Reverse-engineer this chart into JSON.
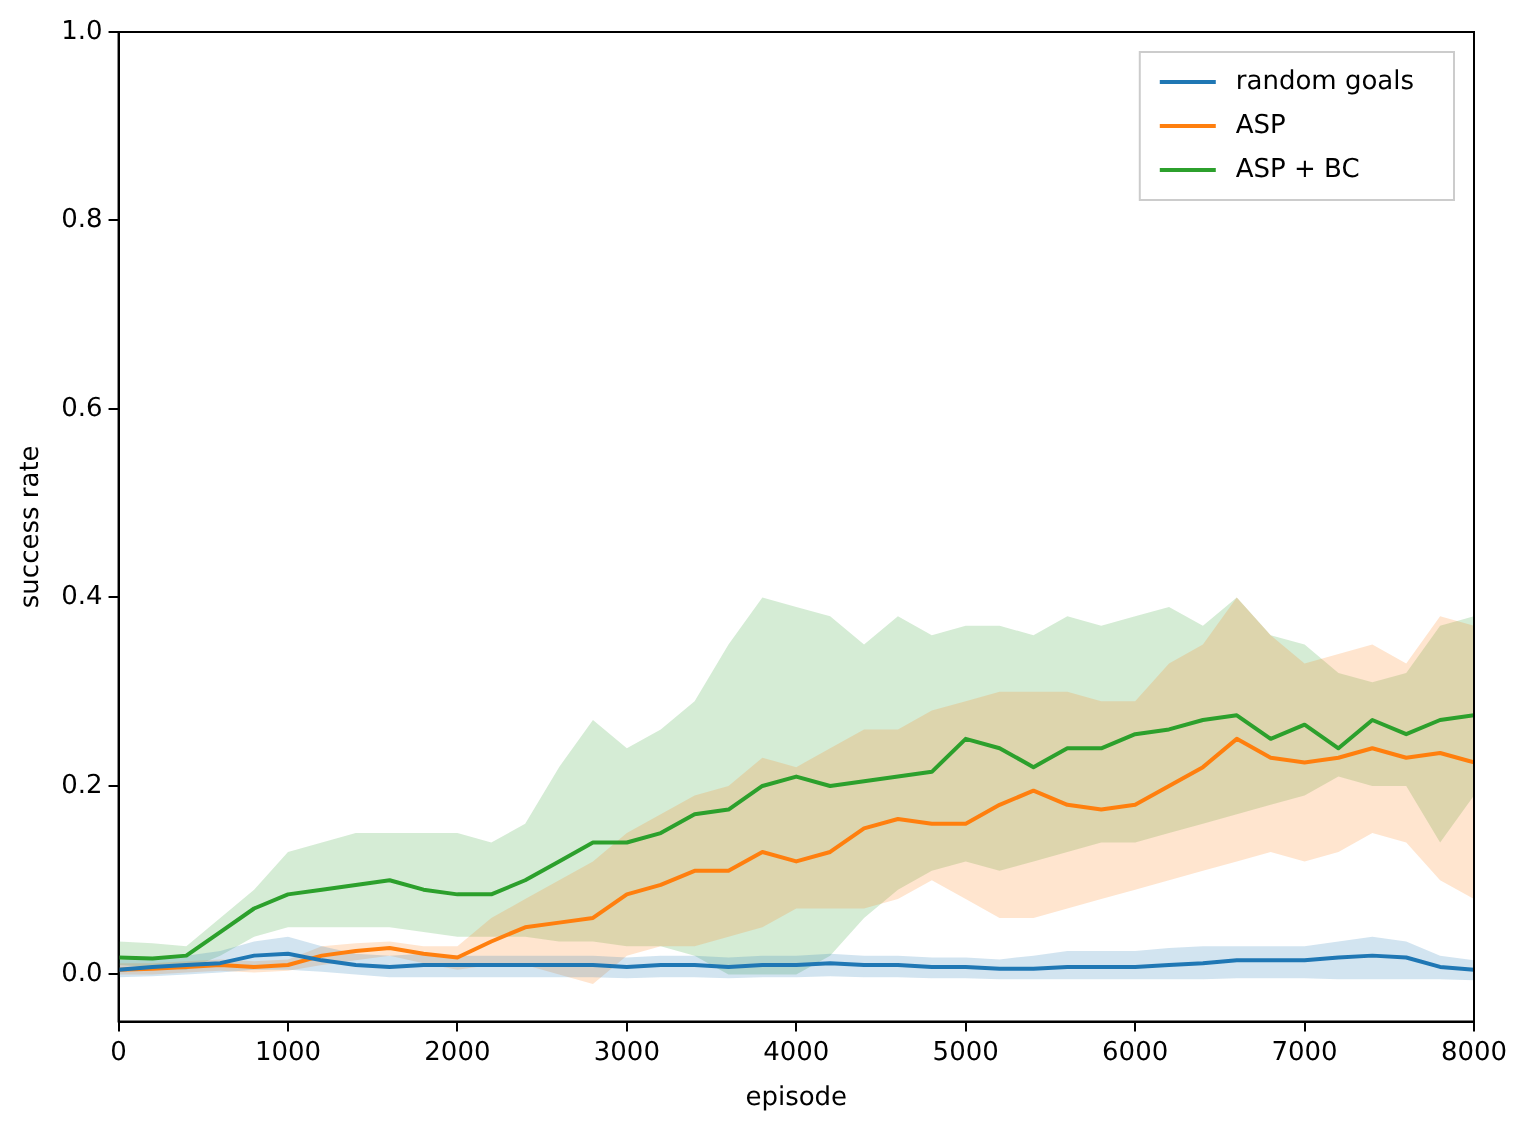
{
  "chart_data": {
    "type": "line",
    "xlabel": "episode",
    "ylabel": "success rate",
    "x": [
      0,
      200,
      400,
      600,
      800,
      1000,
      1200,
      1400,
      1600,
      1800,
      2000,
      2200,
      2400,
      2600,
      2800,
      3000,
      3200,
      3400,
      3600,
      3800,
      4000,
      4200,
      4400,
      4600,
      4800,
      5000,
      5200,
      5400,
      5600,
      5800,
      6000,
      6200,
      6400,
      6600,
      6800,
      7000,
      7200,
      7400,
      7600,
      7800,
      8000
    ],
    "series": [
      {
        "name": "random goals",
        "color": "#1f77b4",
        "values": [
          0.005,
          0.008,
          0.01,
          0.012,
          0.02,
          0.022,
          0.015,
          0.01,
          0.008,
          0.01,
          0.01,
          0.01,
          0.01,
          0.01,
          0.01,
          0.008,
          0.01,
          0.01,
          0.008,
          0.01,
          0.01,
          0.012,
          0.01,
          0.01,
          0.008,
          0.008,
          0.006,
          0.006,
          0.008,
          0.008,
          0.008,
          0.01,
          0.012,
          0.015,
          0.015,
          0.015,
          0.018,
          0.02,
          0.018,
          0.008,
          0.005
        ],
        "upper": [
          0.015,
          0.018,
          0.02,
          0.025,
          0.035,
          0.04,
          0.03,
          0.022,
          0.02,
          0.022,
          0.02,
          0.02,
          0.02,
          0.02,
          0.02,
          0.018,
          0.02,
          0.02,
          0.018,
          0.02,
          0.02,
          0.022,
          0.02,
          0.02,
          0.018,
          0.018,
          0.016,
          0.02,
          0.025,
          0.025,
          0.025,
          0.028,
          0.03,
          0.03,
          0.03,
          0.03,
          0.035,
          0.04,
          0.035,
          0.02,
          0.015
        ],
        "lower": [
          -0.003,
          -0.002,
          0,
          0.002,
          0.005,
          0.005,
          0.003,
          0,
          -0.003,
          -0.003,
          -0.003,
          -0.003,
          -0.003,
          -0.003,
          -0.003,
          -0.004,
          -0.003,
          -0.003,
          -0.004,
          -0.003,
          -0.003,
          -0.002,
          -0.003,
          -0.003,
          -0.004,
          -0.004,
          -0.005,
          -0.005,
          -0.005,
          -0.005,
          -0.005,
          -0.005,
          -0.005,
          -0.004,
          -0.004,
          -0.004,
          -0.005,
          -0.005,
          -0.005,
          -0.005,
          -0.006
        ]
      },
      {
        "name": "ASP",
        "color": "#ff7f0e",
        "values": [
          0.005,
          0.006,
          0.008,
          0.01,
          0.008,
          0.01,
          0.02,
          0.025,
          0.028,
          0.022,
          0.018,
          0.035,
          0.05,
          0.055,
          0.06,
          0.085,
          0.095,
          0.11,
          0.11,
          0.13,
          0.12,
          0.13,
          0.155,
          0.165,
          0.16,
          0.16,
          0.18,
          0.195,
          0.18,
          0.175,
          0.18,
          0.2,
          0.22,
          0.25,
          0.23,
          0.225,
          0.23,
          0.24,
          0.23,
          0.235,
          0.225
        ],
        "upper": [
          0.012,
          0.012,
          0.014,
          0.016,
          0.014,
          0.016,
          0.03,
          0.033,
          0.035,
          0.03,
          0.03,
          0.06,
          0.08,
          0.1,
          0.12,
          0.15,
          0.17,
          0.19,
          0.2,
          0.23,
          0.22,
          0.24,
          0.26,
          0.26,
          0.28,
          0.29,
          0.3,
          0.3,
          0.3,
          0.29,
          0.29,
          0.33,
          0.35,
          0.4,
          0.36,
          0.33,
          0.34,
          0.35,
          0.33,
          0.38,
          0.37
        ],
        "lower": [
          0,
          0,
          0.002,
          0.004,
          0.002,
          0.004,
          0.01,
          0.015,
          0.02,
          0.012,
          0.005,
          0.01,
          0.01,
          0,
          -0.01,
          0.02,
          0.03,
          0.03,
          0.04,
          0.05,
          0.07,
          0.07,
          0.07,
          0.08,
          0.1,
          0.08,
          0.06,
          0.06,
          0.07,
          0.08,
          0.09,
          0.1,
          0.11,
          0.12,
          0.13,
          0.12,
          0.13,
          0.15,
          0.14,
          0.1,
          0.08
        ]
      },
      {
        "name": "ASP + BC",
        "color": "#2ca02c",
        "values": [
          0.018,
          0.017,
          0.02,
          0.045,
          0.07,
          0.085,
          0.09,
          0.095,
          0.1,
          0.09,
          0.085,
          0.085,
          0.1,
          0.12,
          0.14,
          0.14,
          0.15,
          0.17,
          0.175,
          0.2,
          0.21,
          0.2,
          0.205,
          0.21,
          0.215,
          0.25,
          0.24,
          0.22,
          0.24,
          0.24,
          0.255,
          0.26,
          0.27,
          0.275,
          0.25,
          0.265,
          0.24,
          0.27,
          0.255,
          0.27,
          0.275
        ],
        "upper": [
          0.035,
          0.033,
          0.03,
          0.06,
          0.09,
          0.13,
          0.14,
          0.15,
          0.15,
          0.15,
          0.15,
          0.14,
          0.16,
          0.22,
          0.27,
          0.24,
          0.26,
          0.29,
          0.35,
          0.4,
          0.39,
          0.38,
          0.35,
          0.38,
          0.36,
          0.37,
          0.37,
          0.36,
          0.38,
          0.37,
          0.38,
          0.39,
          0.37,
          0.4,
          0.36,
          0.35,
          0.32,
          0.31,
          0.32,
          0.37,
          0.38
        ],
        "lower": [
          0.01,
          0.008,
          0.005,
          0.02,
          0.04,
          0.05,
          0.05,
          0.05,
          0.05,
          0.045,
          0.04,
          0.04,
          0.04,
          0.035,
          0.035,
          0.03,
          0.03,
          0.02,
          0,
          0,
          0,
          0.02,
          0.06,
          0.09,
          0.11,
          0.12,
          0.11,
          0.12,
          0.13,
          0.14,
          0.14,
          0.15,
          0.16,
          0.17,
          0.18,
          0.19,
          0.21,
          0.2,
          0.2,
          0.14,
          0.19
        ]
      }
    ],
    "xlim": [
      0,
      8000
    ],
    "xticks": [
      0,
      1000,
      2000,
      3000,
      4000,
      5000,
      6000,
      7000,
      8000
    ],
    "ylim": [
      -0.05,
      1.0
    ],
    "yticks": [
      {
        "value": 0,
        "label": "0.0"
      },
      {
        "value": 0.2,
        "label": "0.2"
      },
      {
        "value": 0.4,
        "label": "0.4"
      },
      {
        "value": 0.6,
        "label": "0.6"
      },
      {
        "value": 0.8,
        "label": "0.8"
      },
      {
        "value": 1.0,
        "label": "1.0"
      }
    ],
    "grid": false,
    "legend": "top right",
    "marker": "none",
    "line_style": "solid"
  }
}
